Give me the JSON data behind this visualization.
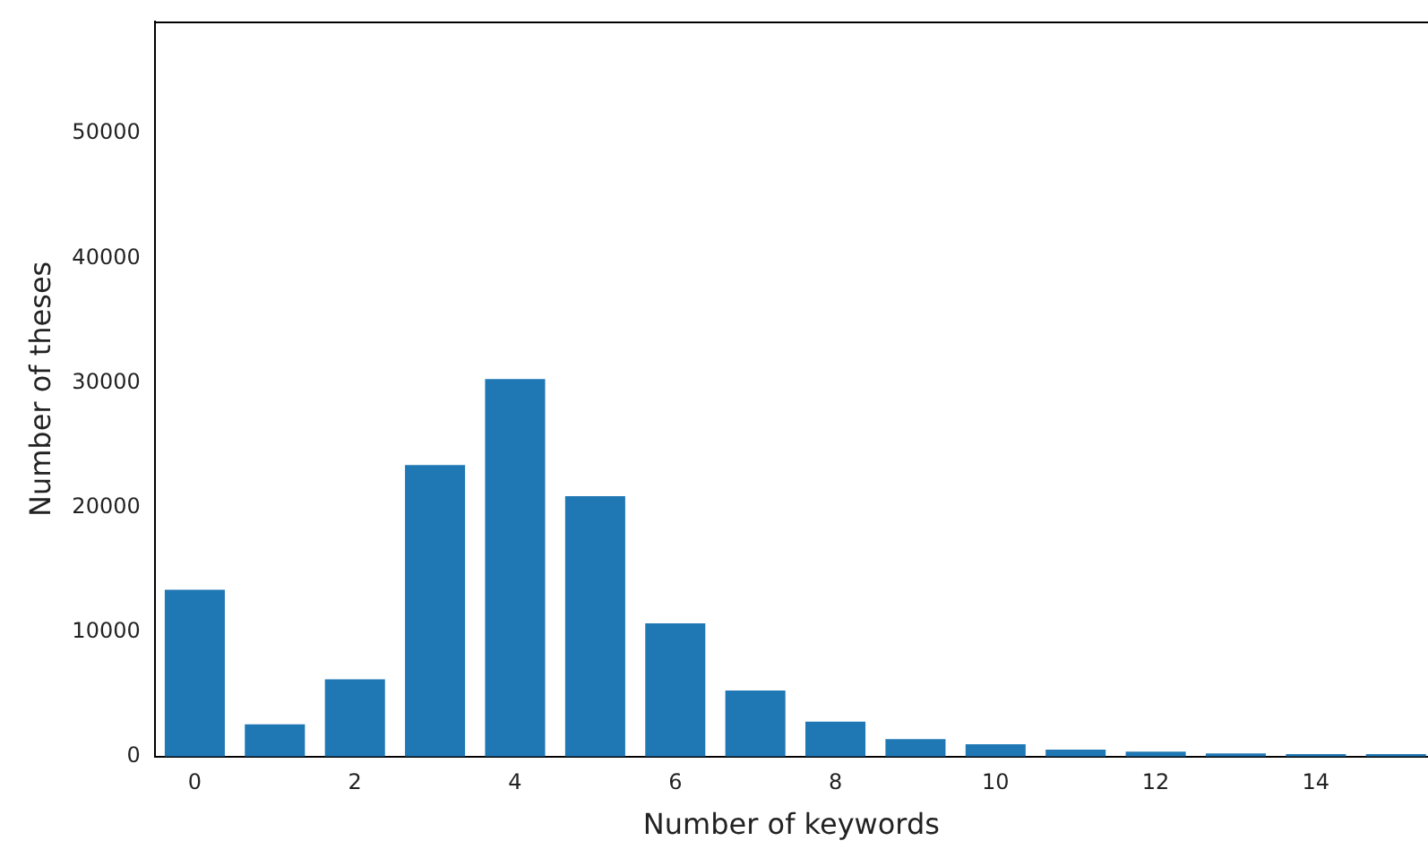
{
  "chart_data": {
    "type": "bar",
    "xlabel": "Number of keywords",
    "ylabel": "Number of theses",
    "x": [
      0,
      1,
      2,
      3,
      4,
      5,
      6,
      7,
      8,
      9,
      10,
      11,
      12,
      13,
      14,
      15
    ],
    "values": [
      13400,
      2600,
      6200,
      23400,
      30300,
      20900,
      10700,
      5300,
      2800,
      1400,
      1000,
      560,
      400,
      250,
      200,
      200
    ],
    "color": "#1f77b4",
    "xlim": [
      -0.5,
      15.4
    ],
    "xticks": [
      0,
      2,
      4,
      6,
      8,
      10,
      12,
      14
    ],
    "ylim": [
      0,
      59000
    ],
    "yticks": [
      0,
      10000,
      20000,
      30000,
      40000,
      50000
    ],
    "grid": false,
    "legend": false
  }
}
